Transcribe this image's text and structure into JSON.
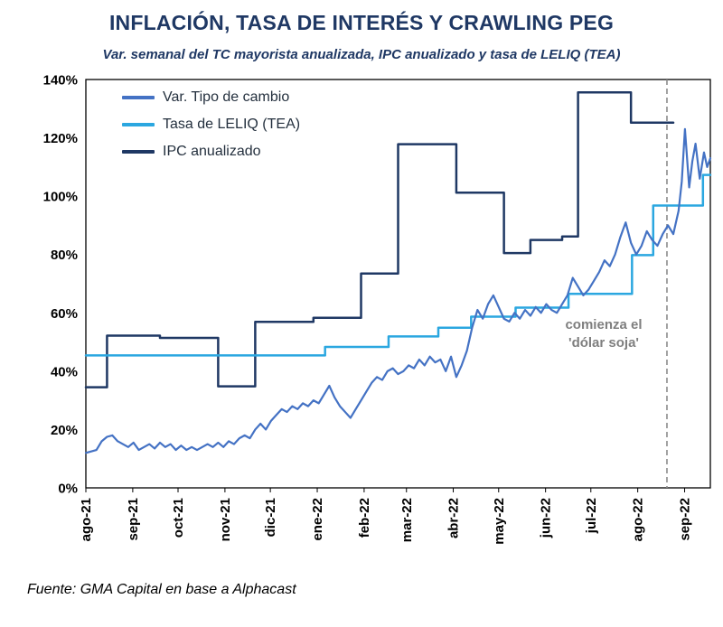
{
  "page": {
    "title": "INFLACIÓN, TASA DE INTERÉS Y CRAWLING PEG",
    "subtitle": "Var. semanal del TC mayorista anualizada, IPC anualizado y tasa de LELIQ (TEA)",
    "source": "Fuente: GMA Capital en base a Alphacast"
  },
  "annotation": {
    "line1": "comienza el",
    "line2": "'dólar soja'"
  },
  "colors": {
    "title": "#1F3864",
    "tc_line": "#4472C4",
    "leliq_line": "#2BA7E0",
    "ipc_line": "#1F3864",
    "vline": "#8C8C8C",
    "annotation_text": "#7F7F7F",
    "axis": "#000000"
  },
  "chart_data": {
    "type": "line",
    "title": "INFLACIÓN, TASA DE INTERÉS Y CRAWLING PEG",
    "subtitle": "Var. semanal del TC mayorista anualizada, IPC anualizado y tasa de LELIQ (TEA)",
    "x_unit": "weeks from ago-21",
    "xlim": [
      0,
      59
    ],
    "ylim": [
      0,
      140
    ],
    "grid": false,
    "legend_position": "top-left-inside",
    "y_ticks": [
      0,
      20,
      40,
      60,
      80,
      100,
      120,
      140
    ],
    "y_tick_suffix": "%",
    "x_ticks": [
      {
        "pos": 0,
        "label": "ago-21"
      },
      {
        "pos": 4.43,
        "label": "sep-21"
      },
      {
        "pos": 8.71,
        "label": "oct-21"
      },
      {
        "pos": 13.14,
        "label": "nov-21"
      },
      {
        "pos": 17.43,
        "label": "dic-21"
      },
      {
        "pos": 21.86,
        "label": "ene-22"
      },
      {
        "pos": 26.29,
        "label": "feb-22"
      },
      {
        "pos": 30.29,
        "label": "mar-22"
      },
      {
        "pos": 34.71,
        "label": "abr-22"
      },
      {
        "pos": 39.0,
        "label": "may-22"
      },
      {
        "pos": 43.43,
        "label": "jun-22"
      },
      {
        "pos": 47.71,
        "label": "jul-22"
      },
      {
        "pos": 52.14,
        "label": "ago-22"
      },
      {
        "pos": 56.57,
        "label": "sep-22"
      }
    ],
    "vline": {
      "pos": 54.9,
      "style": "dashed",
      "label": "comienza el 'dólar soja'"
    },
    "series": [
      {
        "id": "tipo-de-cambio",
        "name": "Var. Tipo de cambio",
        "color": "#4472C4",
        "style": "line",
        "width": 2.2,
        "points": [
          [
            0,
            12
          ],
          [
            1,
            13
          ],
          [
            1.5,
            16
          ],
          [
            2,
            17.5
          ],
          [
            2.5,
            18
          ],
          [
            3,
            16
          ],
          [
            4,
            14
          ],
          [
            4.5,
            15.5
          ],
          [
            5,
            13
          ],
          [
            5.5,
            14
          ],
          [
            6,
            15
          ],
          [
            6.5,
            13.5
          ],
          [
            7,
            15.5
          ],
          [
            7.5,
            14
          ],
          [
            8,
            15
          ],
          [
            8.5,
            13
          ],
          [
            9,
            14.5
          ],
          [
            9.5,
            13
          ],
          [
            10,
            14
          ],
          [
            10.5,
            13
          ],
          [
            11,
            14
          ],
          [
            11.5,
            15
          ],
          [
            12,
            14
          ],
          [
            12.5,
            15.5
          ],
          [
            13,
            14
          ],
          [
            13.5,
            16
          ],
          [
            14,
            15
          ],
          [
            14.5,
            17
          ],
          [
            15,
            18
          ],
          [
            15.5,
            17
          ],
          [
            16,
            20
          ],
          [
            16.5,
            22
          ],
          [
            17,
            20
          ],
          [
            17.5,
            23
          ],
          [
            18,
            25
          ],
          [
            18.5,
            27
          ],
          [
            19,
            26
          ],
          [
            19.5,
            28
          ],
          [
            20,
            27
          ],
          [
            20.5,
            29
          ],
          [
            21,
            28
          ],
          [
            21.5,
            30
          ],
          [
            22,
            29
          ],
          [
            22.5,
            32
          ],
          [
            23,
            35
          ],
          [
            23.5,
            31
          ],
          [
            24,
            28
          ],
          [
            24.5,
            26
          ],
          [
            25,
            24
          ],
          [
            25.5,
            27
          ],
          [
            26,
            30
          ],
          [
            26.5,
            33
          ],
          [
            27,
            36
          ],
          [
            27.5,
            38
          ],
          [
            28,
            37
          ],
          [
            28.5,
            40
          ],
          [
            29,
            41
          ],
          [
            29.5,
            39
          ],
          [
            30,
            40
          ],
          [
            30.5,
            42
          ],
          [
            31,
            41
          ],
          [
            31.5,
            44
          ],
          [
            32,
            42
          ],
          [
            32.5,
            45
          ],
          [
            33,
            43
          ],
          [
            33.5,
            44
          ],
          [
            34,
            40
          ],
          [
            34.5,
            45
          ],
          [
            35,
            38
          ],
          [
            35.5,
            42
          ],
          [
            36,
            47
          ],
          [
            36.5,
            55
          ],
          [
            37,
            61
          ],
          [
            37.5,
            58
          ],
          [
            38,
            63
          ],
          [
            38.5,
            66
          ],
          [
            39,
            62
          ],
          [
            39.5,
            58
          ],
          [
            40,
            57
          ],
          [
            40.5,
            60
          ],
          [
            41,
            58
          ],
          [
            41.5,
            61
          ],
          [
            42,
            59
          ],
          [
            42.5,
            62
          ],
          [
            43,
            60
          ],
          [
            43.5,
            63
          ],
          [
            44,
            61
          ],
          [
            44.5,
            60
          ],
          [
            45,
            63
          ],
          [
            45.5,
            66
          ],
          [
            46,
            72
          ],
          [
            46.5,
            69
          ],
          [
            47,
            66
          ],
          [
            47.5,
            68
          ],
          [
            48,
            71
          ],
          [
            48.5,
            74
          ],
          [
            49,
            78
          ],
          [
            49.5,
            76
          ],
          [
            50,
            80
          ],
          [
            50.5,
            86
          ],
          [
            51,
            91
          ],
          [
            51.5,
            84
          ],
          [
            52,
            80
          ],
          [
            52.5,
            83
          ],
          [
            53,
            88
          ],
          [
            53.5,
            85
          ],
          [
            54,
            83
          ],
          [
            54.5,
            87
          ],
          [
            55,
            90
          ],
          [
            55.5,
            87
          ],
          [
            56,
            95
          ],
          [
            56.3,
            105
          ],
          [
            56.6,
            123
          ],
          [
            57,
            103
          ],
          [
            57.3,
            112
          ],
          [
            57.6,
            118
          ],
          [
            58,
            106
          ],
          [
            58.4,
            115
          ],
          [
            58.7,
            110
          ],
          [
            59,
            113
          ]
        ]
      },
      {
        "id": "leliq-tea",
        "name": "Tasa de LELIQ (TEA)",
        "color": "#2BA7E0",
        "style": "step",
        "width": 2.5,
        "points": [
          [
            0,
            45.4
          ],
          [
            22.6,
            48.3
          ],
          [
            28.6,
            51.9
          ],
          [
            33.3,
            54.9
          ],
          [
            36.4,
            58.7
          ],
          [
            40.6,
            61.8
          ],
          [
            45.6,
            66.5
          ],
          [
            51.6,
            79.8
          ],
          [
            53.6,
            96.8
          ],
          [
            58.3,
            107.3
          ],
          [
            59,
            107.3
          ]
        ]
      },
      {
        "id": "ipc-anualizado",
        "name": "IPC anualizado",
        "color": "#1F3864",
        "style": "step",
        "width": 2.5,
        "points": [
          [
            0,
            34.5
          ],
          [
            2,
            52.2
          ],
          [
            7,
            51.4
          ],
          [
            12.5,
            34.8
          ],
          [
            16,
            56.9
          ],
          [
            21.5,
            58.3
          ],
          [
            26,
            73.5
          ],
          [
            29.5,
            117.8
          ],
          [
            35,
            101.2
          ],
          [
            39.5,
            80.5
          ],
          [
            42,
            85
          ],
          [
            45,
            86.2
          ],
          [
            46.5,
            135.6
          ],
          [
            51.5,
            125.2
          ],
          [
            55.5,
            125.2
          ]
        ]
      }
    ]
  }
}
